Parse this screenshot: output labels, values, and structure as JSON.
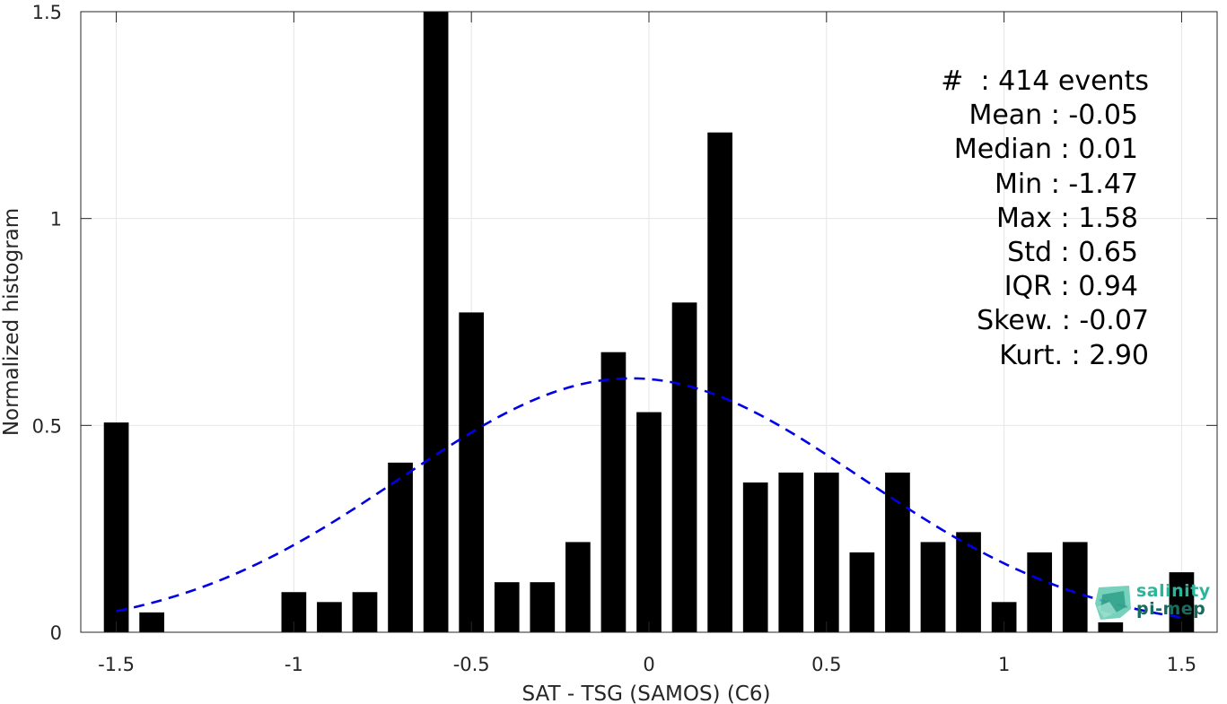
{
  "chart_data": {
    "type": "bar",
    "title": "",
    "xlabel": "SAT - TSG (SAMOS) (C6)",
    "ylabel": "Normalized histogram",
    "xlim": [
      -1.6,
      1.6
    ],
    "ylim": [
      0,
      1.5
    ],
    "xticks": [
      -1.5,
      -1,
      -0.5,
      0,
      0.5,
      1,
      1.5
    ],
    "xtick_labels": [
      "-1.5",
      "-1",
      "-0.5",
      "0",
      "0.5",
      "1",
      "1.5"
    ],
    "yticks": [
      0,
      0.5,
      1,
      1.5
    ],
    "ytick_labels": [
      "0",
      "0.5",
      "1",
      "1.5"
    ],
    "grid": true,
    "bar_width": 0.07,
    "bar_color": "#000000",
    "bars": [
      {
        "x": -1.5,
        "value": 0.507
      },
      {
        "x": -1.4,
        "value": 0.048
      },
      {
        "x": -1.0,
        "value": 0.097
      },
      {
        "x": -0.9,
        "value": 0.073
      },
      {
        "x": -0.8,
        "value": 0.097
      },
      {
        "x": -0.7,
        "value": 0.41
      },
      {
        "x": -0.6,
        "value": 1.5
      },
      {
        "x": -0.5,
        "value": 0.773
      },
      {
        "x": -0.4,
        "value": 0.121
      },
      {
        "x": -0.3,
        "value": 0.121
      },
      {
        "x": -0.2,
        "value": 0.218
      },
      {
        "x": -0.1,
        "value": 0.677
      },
      {
        "x": 0.0,
        "value": 0.532
      },
      {
        "x": 0.1,
        "value": 0.797
      },
      {
        "x": 0.2,
        "value": 1.208
      },
      {
        "x": 0.3,
        "value": 0.362
      },
      {
        "x": 0.4,
        "value": 0.386
      },
      {
        "x": 0.5,
        "value": 0.386
      },
      {
        "x": 0.6,
        "value": 0.193
      },
      {
        "x": 0.7,
        "value": 0.386
      },
      {
        "x": 0.8,
        "value": 0.218
      },
      {
        "x": 0.9,
        "value": 0.242
      },
      {
        "x": 1.0,
        "value": 0.073
      },
      {
        "x": 1.1,
        "value": 0.193
      },
      {
        "x": 1.2,
        "value": 0.218
      },
      {
        "x": 1.3,
        "value": 0.024
      },
      {
        "x": 1.5,
        "value": 0.145
      }
    ],
    "fit_curve": {
      "type": "normal",
      "mean": -0.05,
      "std": 0.65,
      "x_range": [
        -1.5,
        1.5
      ],
      "color": "#0000e6",
      "style": "dashed"
    },
    "stats": [
      {
        "label": "#  : 414 events"
      },
      {
        "label": "Mean : -0.05"
      },
      {
        "label": "Median : 0.01"
      },
      {
        "label": "Min : -1.47"
      },
      {
        "label": "Max : 1.58"
      },
      {
        "label": "Std : 0.65"
      },
      {
        "label": "IQR : 0.94"
      },
      {
        "label": "Skew. : -0.07"
      },
      {
        "label": "Kurt. : 2.90"
      }
    ]
  },
  "logo": {
    "line1": "salinity",
    "line2": "pi-mep"
  }
}
